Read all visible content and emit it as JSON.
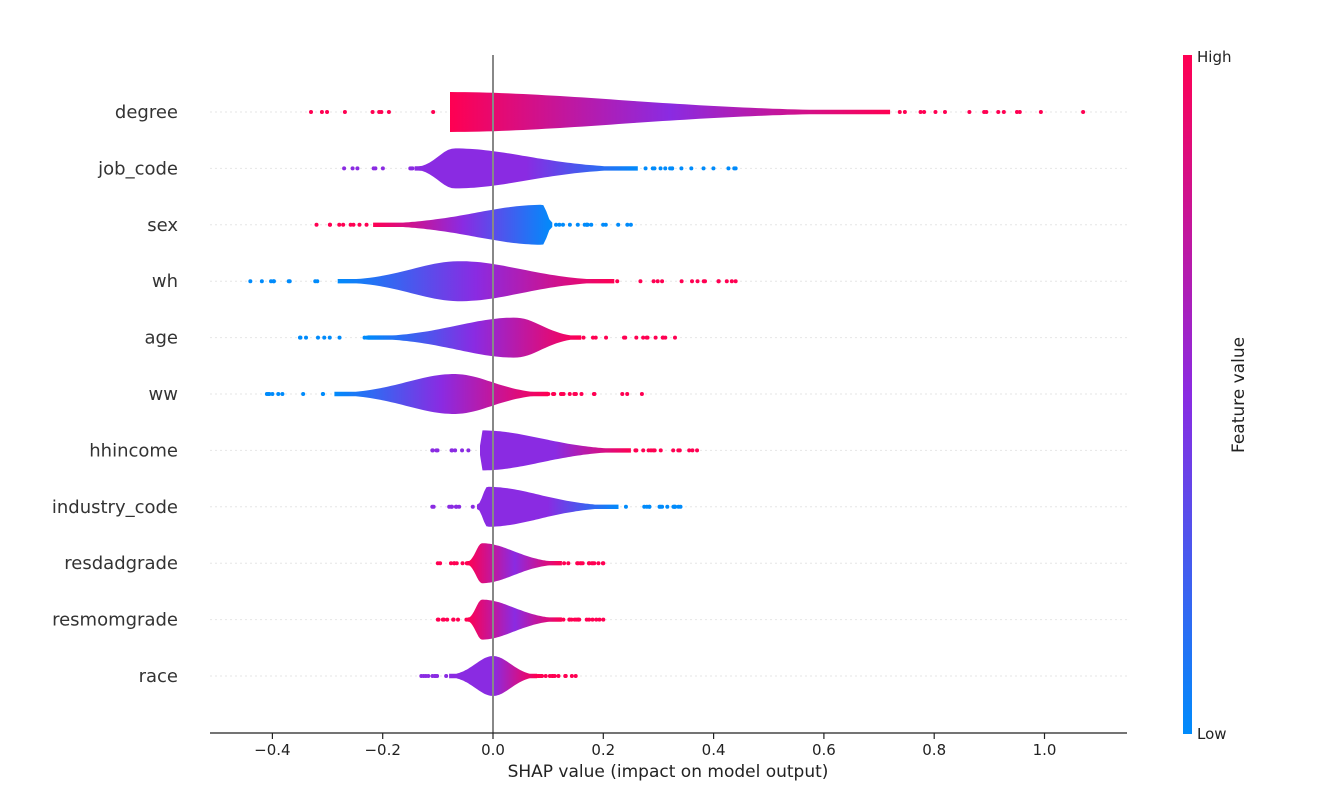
{
  "chart_data": {
    "type": "violin",
    "xlabel": "SHAP value (impact on model output)",
    "xlim": [
      -0.51,
      1.15
    ],
    "xticks": [
      -0.4,
      -0.2,
      0.0,
      0.2,
      0.4,
      0.6,
      0.8,
      1.0
    ],
    "xtick_labels": [
      "−0.4",
      "−0.2",
      "0.0",
      "0.2",
      "0.4",
      "0.6",
      "0.8",
      "1.0"
    ],
    "colorbar": {
      "label": "Feature value",
      "high_label": "High",
      "low_label": "Low",
      "low_color": "#008bfb",
      "mid_color": "#8a2be2",
      "high_color": "#ff0052"
    },
    "grid": false,
    "features": [
      {
        "name": "degree",
        "range": [
          -0.33,
          1.07
        ],
        "peak": -0.09,
        "color_low_side": "high",
        "color_high_side": "high"
      },
      {
        "name": "job_code",
        "range": [
          -0.27,
          0.44
        ],
        "peak": -0.07,
        "color_low_side": "mid",
        "color_high_side": "low"
      },
      {
        "name": "sex",
        "range": [
          -0.32,
          0.25
        ],
        "peak": 0.09,
        "color_low_side": "high",
        "color_high_side": "low"
      },
      {
        "name": "wh",
        "range": [
          -0.44,
          0.44
        ],
        "peak": -0.06,
        "color_low_side": "low",
        "color_high_side": "high"
      },
      {
        "name": "age",
        "range": [
          -0.35,
          0.33
        ],
        "peak": 0.04,
        "color_low_side": "low",
        "color_high_side": "high"
      },
      {
        "name": "ww",
        "range": [
          -0.41,
          0.27
        ],
        "peak": -0.07,
        "color_low_side": "low",
        "color_high_side": "high"
      },
      {
        "name": "hhincome",
        "range": [
          -0.11,
          0.37
        ],
        "peak": -0.02,
        "color_low_side": "mid",
        "color_high_side": "high"
      },
      {
        "name": "industry_code",
        "range": [
          -0.11,
          0.34
        ],
        "peak": -0.01,
        "color_low_side": "mid",
        "color_high_side": "low"
      },
      {
        "name": "resdadgrade",
        "range": [
          -0.1,
          0.2
        ],
        "peak": -0.02,
        "color_low_side": "high",
        "color_high_side": "high"
      },
      {
        "name": "resmomgrade",
        "range": [
          -0.1,
          0.2
        ],
        "peak": -0.02,
        "color_low_side": "high",
        "color_high_side": "high"
      },
      {
        "name": "race",
        "range": [
          -0.13,
          0.15
        ],
        "peak": 0.0,
        "color_low_side": "mid",
        "color_high_side": "high"
      }
    ]
  }
}
